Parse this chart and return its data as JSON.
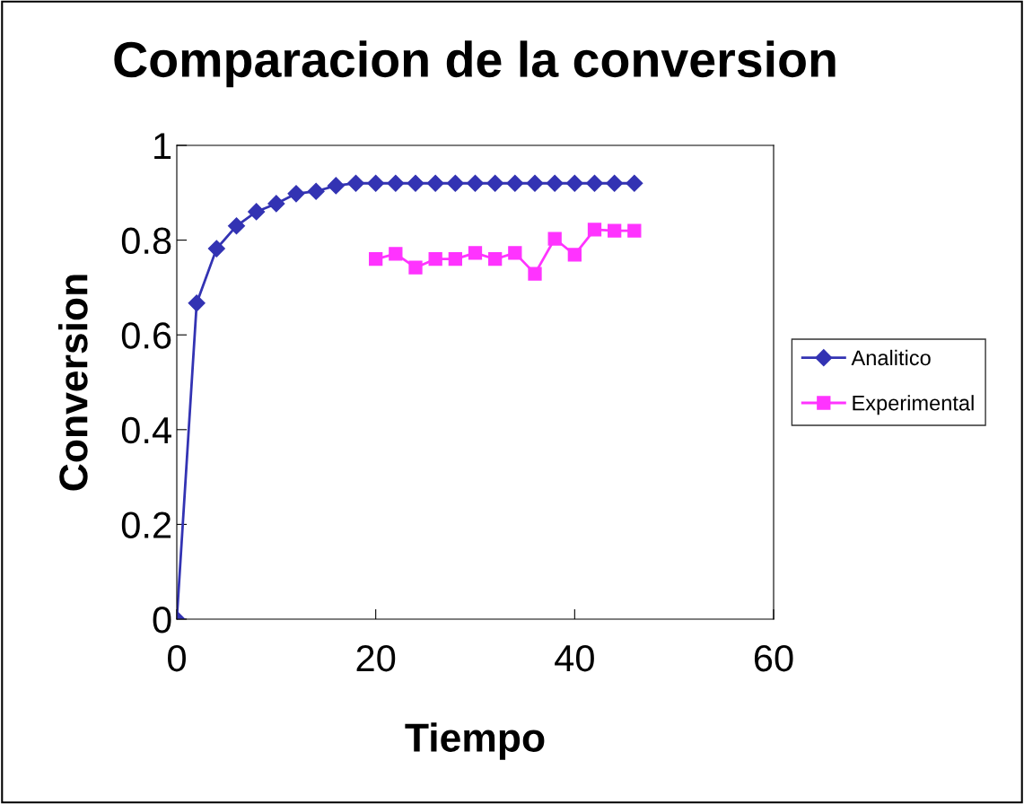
{
  "chart_data": {
    "type": "line",
    "title": "Comparacion de la conversion",
    "xlabel": "Tiempo",
    "ylabel": "Conversion",
    "xlim": [
      0,
      60
    ],
    "xticks": [
      0,
      20,
      40,
      60
    ],
    "ylim": [
      0,
      1
    ],
    "yticks": [
      0,
      0.2,
      0.4,
      0.6,
      0.8,
      1
    ],
    "grid": false,
    "legend": "right",
    "line_style": "solid",
    "series": [
      {
        "name": "Analitico",
        "color": "#3333b3",
        "marker": "diamond",
        "x": [
          0,
          2,
          4,
          6,
          8,
          10,
          12,
          14,
          16,
          18,
          20,
          22,
          24,
          26,
          28,
          30,
          32,
          34,
          36,
          38,
          40,
          42,
          44,
          46
        ],
        "values": [
          0,
          0.667,
          0.782,
          0.83,
          0.86,
          0.877,
          0.898,
          0.903,
          0.915,
          0.92,
          0.92,
          0.92,
          0.92,
          0.92,
          0.92,
          0.92,
          0.92,
          0.92,
          0.92,
          0.92,
          0.92,
          0.92,
          0.92,
          0.92
        ]
      },
      {
        "name": "Experimental",
        "color": "#ff33ff",
        "marker": "square",
        "x": [
          20,
          22,
          24,
          26,
          28,
          30,
          32,
          34,
          36,
          38,
          40,
          42,
          44,
          46
        ],
        "values": [
          0.76,
          0.771,
          0.742,
          0.76,
          0.76,
          0.773,
          0.76,
          0.773,
          0.729,
          0.803,
          0.769,
          0.822,
          0.82,
          0.82
        ]
      }
    ]
  }
}
